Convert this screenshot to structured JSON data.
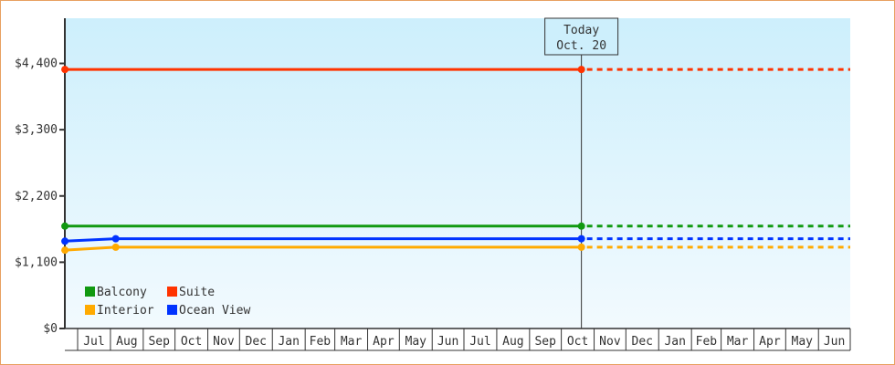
{
  "chart_data": {
    "type": "line",
    "title": "",
    "xlabel": "",
    "ylabel": "",
    "x_tick_labels": [
      "Jul",
      "Aug",
      "Sep",
      "Oct",
      "Nov",
      "Dec",
      "Jan",
      "Feb",
      "Mar",
      "Apr",
      "May",
      "Jun",
      "Jul",
      "Aug",
      "Sep",
      "Oct",
      "Nov",
      "Dec",
      "Jan",
      "Feb",
      "Mar",
      "Apr",
      "May",
      "Jun"
    ],
    "x_start": "Jun 19",
    "x_end": "Jun 30",
    "y_ticks": [
      0,
      1100,
      2200,
      3300,
      4400
    ],
    "y_tick_labels": [
      "$0",
      "$1,100",
      "$2,200",
      "$3,300",
      "$4,400"
    ],
    "ylim": [
      0,
      5150
    ],
    "grid": false,
    "legend_placement": "bottom-left",
    "today_marker": {
      "line1": "Today",
      "line2": "Oct. 20",
      "date": "Oct 20"
    },
    "series": [
      {
        "name": "Balcony",
        "color": "#119911",
        "points": [
          {
            "date": "Jun 19",
            "value": 1700
          },
          {
            "date": "Oct 20",
            "value": 1700
          }
        ],
        "forecast_to": "Jun 30"
      },
      {
        "name": "Suite",
        "color": "#ff3300",
        "points": [
          {
            "date": "Jun 19",
            "value": 4300
          },
          {
            "date": "Oct 20",
            "value": 4300
          }
        ],
        "forecast_to": "Jun 30"
      },
      {
        "name": "Interior",
        "color": "#ffaa00",
        "points": [
          {
            "date": "Jun 19",
            "value": 1300
          },
          {
            "date": "Aug 6",
            "value": 1350
          },
          {
            "date": "Oct 20",
            "value": 1350
          }
        ],
        "forecast_to": "Jun 30"
      },
      {
        "name": "Ocean View",
        "color": "#0033ff",
        "points": [
          {
            "date": "Jun 19",
            "value": 1450
          },
          {
            "date": "Aug 6",
            "value": 1490
          },
          {
            "date": "Oct 20",
            "value": 1490
          }
        ],
        "forecast_to": "Jun 30"
      }
    ]
  }
}
